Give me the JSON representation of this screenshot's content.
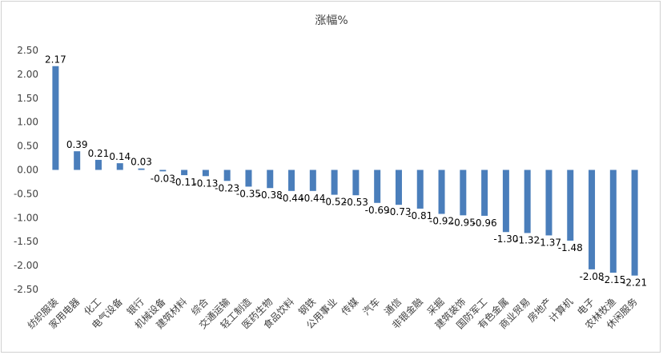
{
  "chart_data": {
    "type": "bar",
    "title": "涨幅%",
    "xlabel": "",
    "ylabel": "",
    "ylim": [
      -2.5,
      2.5
    ],
    "yticks": [
      "2.50",
      "2.00",
      "1.50",
      "1.00",
      "0.50",
      "0.00",
      "-0.50",
      "-1.00",
      "-1.50",
      "-2.00",
      "-2.50"
    ],
    "ytick_values": [
      2.5,
      2.0,
      1.5,
      1.0,
      0.5,
      0.0,
      -0.5,
      -1.0,
      -1.5,
      -2.0,
      -2.5
    ],
    "grid": false,
    "legend": "none",
    "bar_color": "#4a7ebb",
    "categories": [
      "纺织服装",
      "家用电器",
      "化工",
      "电气设备",
      "银行",
      "机械设备",
      "建筑材料",
      "综合",
      "交通运输",
      "轻工制造",
      "医药生物",
      "食品饮料",
      "钢铁",
      "公用事业",
      "传媒",
      "汽车",
      "通信",
      "非银金融",
      "采掘",
      "建筑装饰",
      "国防军工",
      "有色金属",
      "商业贸易",
      "房地产",
      "计算机",
      "电子",
      "农林牧渔",
      "休闲服务"
    ],
    "values": [
      2.17,
      0.39,
      0.21,
      0.14,
      0.03,
      -0.03,
      -0.11,
      -0.13,
      -0.23,
      -0.35,
      -0.38,
      -0.44,
      -0.44,
      -0.52,
      -0.53,
      -0.69,
      -0.73,
      -0.81,
      -0.92,
      -0.95,
      -0.96,
      -1.3,
      -1.32,
      -1.37,
      -1.48,
      -2.08,
      -2.15,
      -2.21
    ],
    "value_labels": [
      "2.17",
      "0.39",
      "0.21",
      "0.14",
      "0.03",
      "-0.03",
      "-0.11",
      "-0.13",
      "-0.23",
      "-0.35",
      "-0.38",
      "-0.44",
      "-0.44",
      "-0.52",
      "-0.53",
      "-0.69",
      "-0.73",
      "-0.81",
      "-0.92",
      "-0.95",
      "-0.96",
      "-1.30",
      "-1.32",
      "-1.37",
      "-1.48",
      "-2.08",
      "-2.15",
      "-2.21"
    ]
  }
}
